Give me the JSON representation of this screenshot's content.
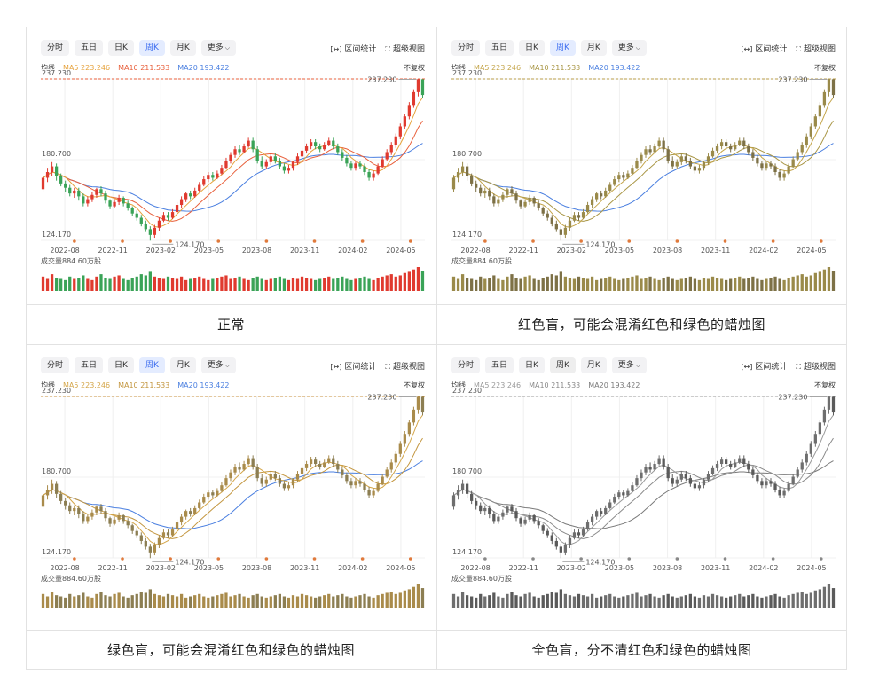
{
  "panels": [
    {
      "caption": "正常",
      "mode": "normal"
    },
    {
      "caption": "红色盲，可能会混淆红色和绿色的蜡烛图",
      "mode": "protan"
    },
    {
      "caption": "绿色盲，可能会混淆红色和绿色的蜡烛图",
      "mode": "deutan"
    },
    {
      "caption": "全色盲，分不清红色和绿色的蜡烛图",
      "mode": "achroma"
    }
  ],
  "toolbar": {
    "tabs": [
      "分时",
      "五日",
      "日K",
      "周K",
      "月K",
      "更多"
    ],
    "active_tab": "周K",
    "range_stats": "区间统计",
    "super_view": "超级视图"
  },
  "legend": {
    "ma_label": "均线",
    "ma5": "MA5 223.246",
    "ma10": "MA10 211.533",
    "ma20": "MA20 193.422",
    "fuquan": "不复权"
  },
  "volume_label": "成交量884.60万股",
  "icons": {
    "chevron": "chevron-down-icon",
    "range": "range-bracket-icon",
    "super": "expand-view-icon"
  },
  "colors": {
    "normal": {
      "up": "#e03a2f",
      "down": "#3aa357",
      "ma5": "#e6a23c",
      "ma10": "#e8603c",
      "ma20": "#4a7fe0",
      "ref": "#e8603c",
      "tab_active_bg": "#e4ecff",
      "tab_active_fg": "#3b6cf0"
    },
    "protan": {
      "up": "#9a8a4a",
      "down": "#7d7146",
      "ma5": "#c4a54a",
      "ma10": "#a99645",
      "ma20": "#4a7fe0",
      "ref": "#b89c4a",
      "tab_active_bg": "#e4ecff",
      "tab_active_fg": "#3b6cf0"
    },
    "deutan": {
      "up": "#a98b4b",
      "down": "#8c7e52",
      "ma5": "#d4a64a",
      "ma10": "#c3963f",
      "ma20": "#4a7fe0",
      "ref": "#c8913e",
      "tab_active_bg": "#e4ecff",
      "tab_active_fg": "#3b6cf0"
    },
    "achroma": {
      "up": "#6e6e6e",
      "down": "#5a5a5a",
      "ma5": "#9a9a9a",
      "ma10": "#8a8a8a",
      "ma20": "#7a7a7a",
      "ref": "#999999",
      "tab_active_bg": "#eeeeee",
      "tab_active_fg": "#333333"
    }
  },
  "chart_data": {
    "type": "candlestick",
    "title": "",
    "y_ticks": [
      "237.230",
      "180.700",
      "124.170"
    ],
    "ylim": [
      124.17,
      237.23
    ],
    "x_tick_labels": [
      "2022-08",
      "2022-11",
      "2023-02",
      "2023-05",
      "2023-08",
      "2023-11",
      "2024-02",
      "2024-05"
    ],
    "max_label": "237.230",
    "min_label": "124.170",
    "reference_line": 237.23,
    "candles": [
      [
        160,
        168,
        158,
        170
      ],
      [
        168,
        172,
        165,
        175
      ],
      [
        172,
        176,
        169,
        179
      ],
      [
        176,
        169,
        166,
        178
      ],
      [
        169,
        164,
        162,
        171
      ],
      [
        164,
        161,
        158,
        166
      ],
      [
        161,
        157,
        155,
        163
      ],
      [
        157,
        159,
        154,
        161
      ],
      [
        159,
        155,
        152,
        161
      ],
      [
        155,
        150,
        148,
        157
      ],
      [
        150,
        153,
        148,
        155
      ],
      [
        153,
        156,
        151,
        158
      ],
      [
        156,
        160,
        154,
        161
      ],
      [
        160,
        157,
        155,
        162
      ],
      [
        157,
        152,
        150,
        159
      ],
      [
        152,
        148,
        146,
        153
      ],
      [
        148,
        151,
        147,
        153
      ],
      [
        151,
        154,
        149,
        156
      ],
      [
        154,
        150,
        148,
        155
      ],
      [
        150,
        147,
        145,
        152
      ],
      [
        147,
        143,
        141,
        148
      ],
      [
        143,
        140,
        138,
        145
      ],
      [
        140,
        136,
        134,
        142
      ],
      [
        136,
        132,
        130,
        138
      ],
      [
        132,
        128,
        124,
        134
      ],
      [
        128,
        133,
        126,
        135
      ],
      [
        133,
        138,
        131,
        140
      ],
      [
        138,
        142,
        137,
        144
      ],
      [
        142,
        140,
        138,
        144
      ],
      [
        140,
        144,
        139,
        146
      ],
      [
        144,
        149,
        143,
        151
      ],
      [
        149,
        153,
        147,
        155
      ],
      [
        153,
        157,
        151,
        158
      ],
      [
        157,
        155,
        153,
        159
      ],
      [
        155,
        159,
        154,
        161
      ],
      [
        159,
        163,
        158,
        165
      ],
      [
        163,
        167,
        162,
        169
      ],
      [
        167,
        170,
        165,
        172
      ],
      [
        170,
        168,
        166,
        172
      ],
      [
        168,
        171,
        167,
        173
      ],
      [
        171,
        175,
        170,
        177
      ],
      [
        175,
        180,
        174,
        182
      ],
      [
        180,
        184,
        178,
        186
      ],
      [
        184,
        188,
        182,
        190
      ],
      [
        188,
        186,
        184,
        191
      ],
      [
        186,
        190,
        185,
        192
      ],
      [
        190,
        194,
        189,
        196
      ],
      [
        194,
        188,
        186,
        196
      ],
      [
        188,
        180,
        178,
        190
      ],
      [
        180,
        176,
        174,
        183
      ],
      [
        176,
        179,
        174,
        181
      ],
      [
        179,
        183,
        177,
        185
      ],
      [
        183,
        180,
        178,
        185
      ],
      [
        180,
        176,
        174,
        182
      ],
      [
        176,
        173,
        171,
        178
      ],
      [
        173,
        175,
        171,
        177
      ],
      [
        175,
        179,
        173,
        180
      ],
      [
        179,
        183,
        177,
        185
      ],
      [
        183,
        187,
        182,
        189
      ],
      [
        187,
        190,
        185,
        192
      ],
      [
        190,
        193,
        188,
        195
      ],
      [
        193,
        190,
        188,
        195
      ],
      [
        190,
        188,
        186,
        192
      ],
      [
        188,
        191,
        187,
        193
      ],
      [
        191,
        194,
        190,
        196
      ],
      [
        194,
        190,
        188,
        196
      ],
      [
        190,
        186,
        184,
        192
      ],
      [
        186,
        182,
        180,
        188
      ],
      [
        182,
        178,
        176,
        184
      ],
      [
        178,
        175,
        173,
        180
      ],
      [
        175,
        178,
        173,
        180
      ],
      [
        178,
        176,
        174,
        180
      ],
      [
        176,
        172,
        170,
        178
      ],
      [
        172,
        168,
        166,
        174
      ],
      [
        168,
        171,
        166,
        173
      ],
      [
        171,
        176,
        170,
        178
      ],
      [
        176,
        181,
        175,
        183
      ],
      [
        181,
        186,
        180,
        188
      ],
      [
        186,
        191,
        184,
        193
      ],
      [
        191,
        197,
        189,
        199
      ],
      [
        197,
        204,
        195,
        206
      ],
      [
        204,
        211,
        202,
        213
      ],
      [
        211,
        219,
        209,
        221
      ],
      [
        219,
        228,
        217,
        230
      ],
      [
        228,
        237,
        225,
        237
      ],
      [
        237,
        226,
        224,
        236
      ]
    ],
    "volume": [
      0.6,
      0.5,
      0.7,
      0.55,
      0.5,
      0.45,
      0.6,
      0.5,
      0.55,
      0.65,
      0.5,
      0.45,
      0.6,
      0.7,
      0.55,
      0.5,
      0.6,
      0.65,
      0.5,
      0.45,
      0.55,
      0.6,
      0.7,
      0.65,
      0.8,
      0.6,
      0.55,
      0.5,
      0.6,
      0.55,
      0.5,
      0.6,
      0.45,
      0.5,
      0.55,
      0.6,
      0.5,
      0.45,
      0.5,
      0.55,
      0.6,
      0.65,
      0.5,
      0.55,
      0.6,
      0.5,
      0.45,
      0.55,
      0.6,
      0.5,
      0.45,
      0.5,
      0.55,
      0.6,
      0.5,
      0.45,
      0.55,
      0.5,
      0.6,
      0.55,
      0.5,
      0.45,
      0.5,
      0.55,
      0.6,
      0.5,
      0.55,
      0.6,
      0.5,
      0.45,
      0.5,
      0.55,
      0.6,
      0.5,
      0.45,
      0.55,
      0.6,
      0.65,
      0.7,
      0.6,
      0.65,
      0.75,
      0.8,
      0.9,
      1.0,
      0.85
    ]
  }
}
